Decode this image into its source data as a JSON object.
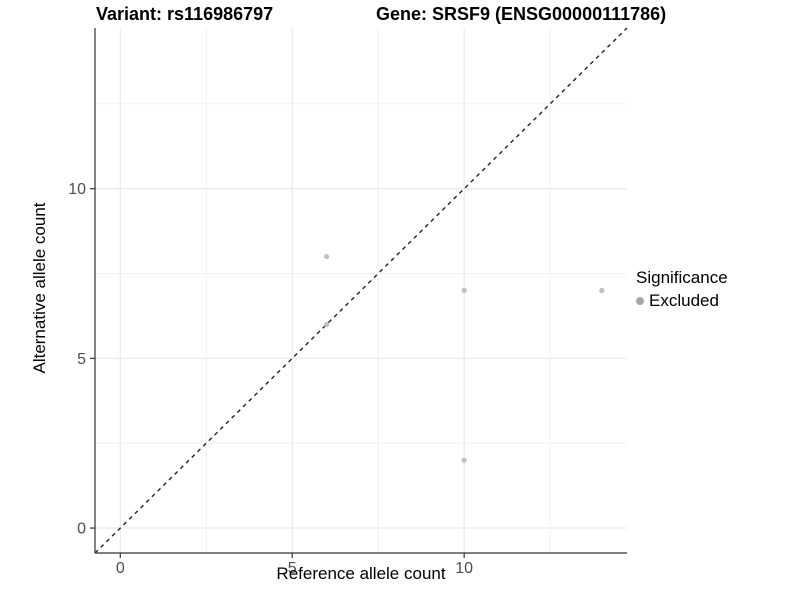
{
  "chart_data": {
    "type": "scatter",
    "title_left": "Variant: rs116986797",
    "title_right": "Gene: SRSF9 (ENSG00000111786)",
    "xlabel": "Reference allele count",
    "ylabel": "Alternative allele count",
    "xlim": [
      -0.735,
      14.735
    ],
    "ylim": [
      -0.735,
      14.735
    ],
    "x_ticks": [
      0,
      5,
      10
    ],
    "y_ticks": [
      0,
      5,
      10
    ],
    "x_minor_ticks": [
      2.5,
      7.5,
      12.5
    ],
    "y_minor_ticks": [
      2.5,
      7.5,
      12.5
    ],
    "points": [
      {
        "x": 6,
        "y": 8,
        "series": "Excluded"
      },
      {
        "x": 6,
        "y": 6,
        "series": "Excluded"
      },
      {
        "x": 10,
        "y": 7,
        "series": "Excluded"
      },
      {
        "x": 14,
        "y": 7,
        "series": "Excluded"
      },
      {
        "x": 10,
        "y": 2,
        "series": "Excluded"
      }
    ],
    "identity_line": {
      "style": "dashed",
      "color": "#222222",
      "from": -0.735,
      "to": 14.735
    },
    "legend": {
      "title": "Significance",
      "entries": [
        {
          "label": "Excluded",
          "color": "#a6a6a6"
        }
      ]
    },
    "colors": {
      "point": "#bfbfbf",
      "grid_major": "#e6e6e6",
      "grid_minor": "#f0f0f0",
      "axis": "#333333",
      "tick_label": "#4d4d4d"
    },
    "grid": "on",
    "legend_position": "right"
  }
}
